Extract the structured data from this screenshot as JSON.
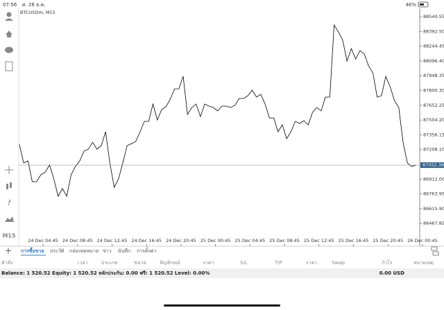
{
  "status_bar": {
    "time": "07:56",
    "date": "ศ. 26 ธ.ค.",
    "battery": "46%"
  },
  "chart_data": {
    "type": "line",
    "title": "BTCUSDm, M15",
    "color": "#000000",
    "x": [
      2,
      2.5,
      3,
      3.5,
      4,
      4.5,
      5,
      5.5,
      6,
      6.5,
      7,
      7.5,
      8,
      8.5,
      9,
      9.5,
      10,
      10.5,
      11,
      11.5,
      12,
      12.5,
      13,
      13.5,
      14,
      14.5,
      15,
      15.5,
      16,
      16.5,
      17,
      17.5,
      18,
      18.5,
      19,
      19.5,
      20,
      20.5,
      21,
      21.5,
      22,
      22.5,
      23,
      23.5,
      24,
      24.5,
      25,
      25.5,
      26,
      26.5,
      27,
      27.5,
      28,
      28.5,
      29,
      29.5,
      30,
      30.5,
      31,
      31.5,
      32,
      32.5,
      33,
      33.5,
      34,
      34.5,
      35,
      35.5,
      36,
      36.5,
      37,
      37.5,
      38,
      38.5,
      39,
      39.5,
      40,
      40.5,
      41,
      41.5,
      42,
      42.5,
      43,
      43.5,
      44,
      44.5,
      45,
      45.5,
      46,
      46.5,
      47,
      47.5,
      48
    ],
    "values": [
      87261,
      87074,
      87095,
      86886,
      86886,
      86956,
      86983,
      87053,
      86914,
      86740,
      86817,
      86740,
      86956,
      87039,
      87095,
      87192,
      87213,
      87282,
      87213,
      87248,
      87387,
      87074,
      86830,
      86914,
      87074,
      87248,
      87268,
      87289,
      87387,
      87491,
      87491,
      87665,
      87505,
      87609,
      87637,
      87713,
      87817,
      87817,
      87942,
      87560,
      87630,
      87665,
      87539,
      87665,
      87644,
      87630,
      87595,
      87644,
      87644,
      87630,
      87651,
      87720,
      87720,
      87748,
      87804,
      87734,
      87762,
      87665,
      87525,
      87525,
      87387,
      87456,
      87317,
      87387,
      87491,
      87470,
      87498,
      87456,
      87581,
      87630,
      87595,
      87734,
      87734,
      88457,
      88387,
      88304,
      88095,
      88221,
      88116,
      88200,
      88165,
      88047,
      87977,
      87734,
      87748,
      87942,
      87838,
      87699,
      87630,
      87282,
      87074,
      87039,
      87052.39
    ],
    "current_price": 87052.39,
    "xlim": [
      1.93,
      48.43
    ],
    "xticks": [
      {
        "value": 4.75,
        "label": "24 Dec 04:45"
      },
      {
        "value": 8.75,
        "label": "24 Dec 08:45"
      },
      {
        "value": 12.75,
        "label": "24 Dec 12:45"
      },
      {
        "value": 16.75,
        "label": "24 Dec 16:45"
      },
      {
        "value": 20.75,
        "label": "24 Dec 20:45"
      },
      {
        "value": 24.75,
        "label": "25 Dec 00:45"
      },
      {
        "value": 28.75,
        "label": "25 Dec 04:45"
      },
      {
        "value": 32.75,
        "label": "25 Dec 08:45"
      },
      {
        "value": 36.75,
        "label": "25 Dec 12:45"
      },
      {
        "value": 40.75,
        "label": "25 Dec 16:45"
      },
      {
        "value": 44.75,
        "label": "25 Dec 20:45"
      },
      {
        "value": 48.75,
        "label": "26 Dec 00:45"
      }
    ],
    "ylim": [
      86344,
      88624
    ],
    "yticks": [
      88540.55,
      {
        "value": 88392.5,
        "label": "88392.50"
      },
      88244.45,
      {
        "value": 88096.4,
        "label": "88096.40"
      },
      87948.35,
      {
        "value": 87800.3,
        "label": "87800.30"
      },
      87652.25,
      {
        "value": 87504.2,
        "label": "87504.20"
      },
      87356.15,
      {
        "value": 87208.1,
        "label": "87208.10"
      },
      {
        "value": 86912,
        "label": "86912.00"
      },
      86763.95,
      {
        "value": 86615.9,
        "label": "86615.90"
      },
      86467.85
    ]
  },
  "left_toolbar": {
    "timeframe": "M15"
  },
  "tabs": [
    "การซื้อขาย",
    "ประวัติ",
    "กล่องจดหมาย",
    "ข่าว",
    "บันทึก",
    "การตั้งค่า"
  ],
  "table": {
    "columns": [
      "คำสั่ง",
      "เวลา",
      "ประเภท",
      "ขนาด",
      "สัญลักษณ์",
      "ราคา",
      "S/L",
      "T/P",
      "ราคา",
      "Swap",
      "กำไร",
      "หมายเหตุ"
    ]
  },
  "balance": {
    "summary": "Balance: 1 520.52 Equity: 1 520.52 หลักประกัน: 0.00 ฟรี: 1 520.52 Level: 0.00%",
    "profit": "0.00 USD"
  }
}
